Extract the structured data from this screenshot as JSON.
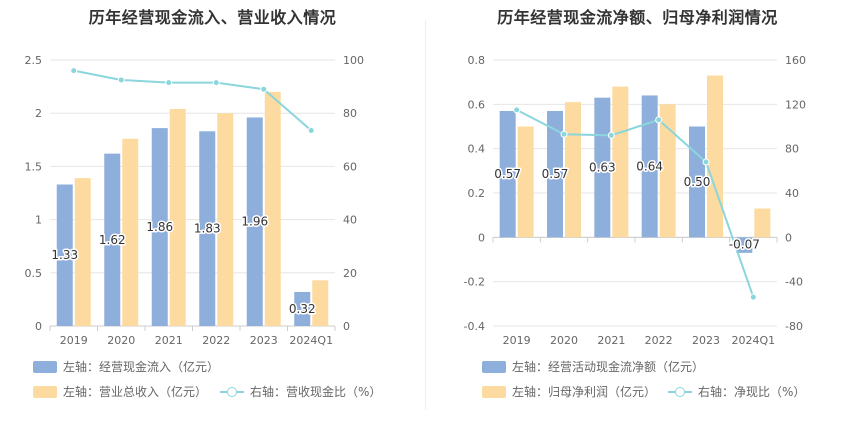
{
  "charts": [
    {
      "title": "历年经营现金流入、营业收入情况",
      "legend": [
        {
          "label": "左轴：经营现金流入（亿元）"
        },
        {
          "label": "左轴：营业总收入（亿元）"
        },
        {
          "label": "右轴：营收现金比（%）"
        }
      ]
    },
    {
      "title": "历年经营现金流净额、归母净利润情况",
      "legend": [
        {
          "label": "左轴：经营活动现金流净额（亿元）"
        },
        {
          "label": "左轴：归母净利润（亿元）"
        },
        {
          "label": "右轴：净现比（%）"
        }
      ]
    }
  ],
  "colors": {
    "bar1": "#8eaedc",
    "bar2": "#fddba0",
    "line": "#8ad6dc"
  },
  "chart_data": [
    {
      "type": "bar",
      "title": "历年经营现金流入、营业收入情况",
      "categories": [
        "2019",
        "2020",
        "2021",
        "2022",
        "2023",
        "2024Q1"
      ],
      "yleft": {
        "ticks": [
          "0",
          "0.5",
          "1",
          "1.5",
          "2",
          "2.5"
        ],
        "min": 0,
        "max": 2.5
      },
      "yright": {
        "ticks": [
          "0",
          "20",
          "40",
          "60",
          "80",
          "100"
        ],
        "min": 0,
        "max": 100
      },
      "series": [
        {
          "name": "左轴：经营现金流入（亿元）",
          "type": "bar",
          "axis": "left",
          "values": [
            1.33,
            1.62,
            1.86,
            1.83,
            1.96,
            0.32
          ],
          "labels": [
            "1.33",
            "1.62",
            "1.86",
            "1.83",
            "1.96",
            "0.32"
          ]
        },
        {
          "name": "左轴：营业总收入（亿元）",
          "type": "bar",
          "axis": "left",
          "values": [
            1.39,
            1.76,
            2.04,
            2.0,
            2.2,
            0.43
          ]
        },
        {
          "name": "右轴：营收现金比（%）",
          "type": "line",
          "axis": "right",
          "values": [
            96,
            92.5,
            91.5,
            91.5,
            89,
            73.5
          ]
        }
      ],
      "grid": true,
      "legend_position": "bottom"
    },
    {
      "type": "bar",
      "title": "历年经营现金流净额、归母净利润情况",
      "categories": [
        "2019",
        "2020",
        "2021",
        "2022",
        "2023",
        "2024Q1"
      ],
      "yleft": {
        "ticks": [
          "-0.4",
          "-0.2",
          "0",
          "0.2",
          "0.4",
          "0.6",
          "0.8"
        ],
        "min": -0.4,
        "max": 0.8
      },
      "yright": {
        "ticks": [
          "-80",
          "-40",
          "0",
          "40",
          "80",
          "120",
          "160"
        ],
        "min": -80,
        "max": 160
      },
      "series": [
        {
          "name": "左轴：经营活动现金流净额（亿元）",
          "type": "bar",
          "axis": "left",
          "values": [
            0.57,
            0.57,
            0.63,
            0.64,
            0.5,
            -0.07
          ],
          "labels": [
            "0.57",
            "0.57",
            "0.63",
            "0.64",
            "0.50",
            "-0.07"
          ]
        },
        {
          "name": "左轴：归母净利润（亿元）",
          "type": "bar",
          "axis": "left",
          "values": [
            0.5,
            0.61,
            0.68,
            0.6,
            0.73,
            0.13
          ]
        },
        {
          "name": "右轴：净现比（%）",
          "type": "line",
          "axis": "right",
          "values": [
            115,
            93,
            92,
            106,
            68,
            -54
          ]
        }
      ],
      "grid": true,
      "legend_position": "bottom"
    }
  ]
}
